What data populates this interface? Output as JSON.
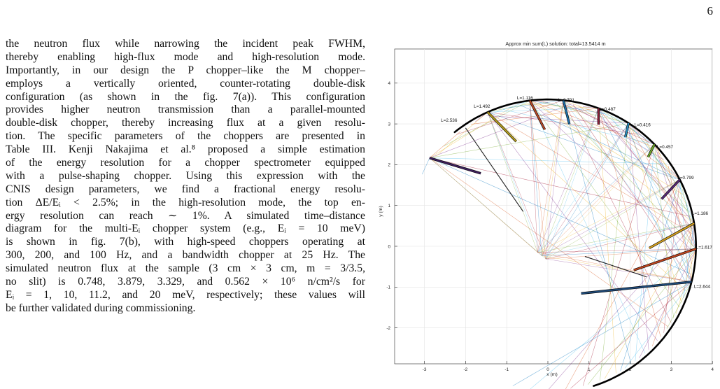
{
  "page_number": "6",
  "text_lines": [
    "the neutron flux while narrowing the incident peak FWHM,",
    "thereby enabling high-flux mode and high-resolution mode.",
    "Importantly, in our design the P chopper–like the M chopper–",
    "employs a vertically oriented, counter-rotating double-disk",
    "configuration (as shown in the fig. 7(a)). This configuration",
    "provides higher neutron transmission than a parallel-mounted",
    "double-disk chopper, thereby increasing flux at a given resolu-",
    "tion. The specific parameters of the choppers are presented in",
    "Table III. Kenji Nakajima et al.⁸ proposed a simple estimation",
    "of the energy resolution for a chopper spectrometer equipped",
    "with a pulse-shaping chopper. Using this expression with the",
    "CNIS design parameters, we find a fractional energy resolu-",
    "tion ΔE/Eᵢ < 2.5%; in the high-resolution mode, the top en-",
    "ergy resolution can reach ∼ 1%. A simulated time–distance",
    "diagram for the multi-Eᵢ chopper system (e.g., Eᵢ = 10 meV)",
    "is shown in fig. 7(b), with high-speed choppers operating at",
    "300, 200, and 100 Hz, and a bandwidth chopper at 25 Hz. The",
    "simulated neutron flux at the sample (3 cm × 3 cm, m = 3/3.5,",
    "no slit) is 0.748, 3.879, 3.329, and 0.562 × 10⁶ n/cm²/s for",
    "Eᵢ = 1, 10, 11.2, and 20 meV, respectively; these values will",
    "be further validated during commissioning."
  ],
  "figure": {
    "title": "Approx min sum(L) solution: total=13.5414 m",
    "xlabel": "x (m)",
    "ylabel": "y (m)",
    "xticks": [
      "-3",
      "-2",
      "-1",
      "0",
      "1",
      "2",
      "3",
      "4"
    ],
    "yticks": [
      "4",
      "3",
      "2",
      "1",
      "0",
      "-1",
      "-2"
    ],
    "analyzers": [
      {
        "label": "L=2.536",
        "color": "#3d1f5c"
      },
      {
        "label": "L=1.492",
        "color": "#b8a020"
      },
      {
        "label": "L=1.116",
        "color": "#b84a28"
      },
      {
        "label": "L=0.791",
        "color": "#1f6fa8"
      },
      {
        "label": "L=0.487",
        "color": "#8a1f3a"
      },
      {
        "label": "L=0.416",
        "color": "#2a8fc0"
      },
      {
        "label": "L=0.457",
        "color": "#6fa82a"
      },
      {
        "label": "L=0.799",
        "color": "#5a2a7a"
      },
      {
        "label": "L=1.186",
        "color": "#d4a020"
      },
      {
        "label": "L=1.617",
        "color": "#c0461f"
      },
      {
        "label": "L=2.644",
        "color": "#1f4a78"
      }
    ],
    "ray_colors": [
      "#0072bd",
      "#d95319",
      "#edb120",
      "#7e2f8e",
      "#77ac30",
      "#4dbeee",
      "#a2142f"
    ]
  }
}
